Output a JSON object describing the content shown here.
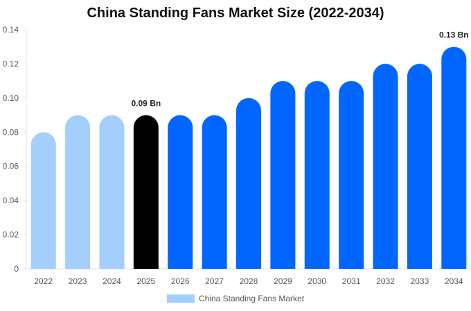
{
  "chart_data": {
    "type": "bar",
    "title": "China Standing Fans Market Size (2022-2034)",
    "xlabel": "",
    "ylabel": "",
    "categories": [
      "2022",
      "2023",
      "2024",
      "2025",
      "2026",
      "2027",
      "2028",
      "2029",
      "2030",
      "2031",
      "2032",
      "2033",
      "2034"
    ],
    "series": [
      {
        "name": "China Standing Fans Market",
        "values": [
          0.08,
          0.09,
          0.09,
          0.09,
          0.09,
          0.09,
          0.1,
          0.11,
          0.11,
          0.11,
          0.12,
          0.12,
          0.13
        ]
      }
    ],
    "ylim": [
      0,
      0.14
    ],
    "yticks": [
      "0",
      "0.02",
      "0.04",
      "0.06",
      "0.08",
      "0.10",
      "0.12",
      "0.14"
    ],
    "data_labels": [
      {
        "category": "2025",
        "text": "0.09 Bn"
      },
      {
        "category": "2034",
        "text": "0.13 Bn"
      }
    ],
    "colors": {
      "historical": "#a4cefc",
      "current": "#000000",
      "forecast": "#0066ff"
    },
    "historical_count": 3,
    "current_index": 3,
    "grid": false,
    "legend_position": "bottom"
  }
}
